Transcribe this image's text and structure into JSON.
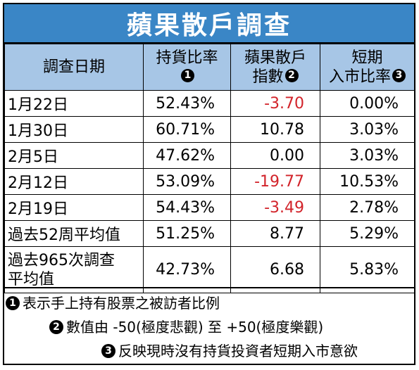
{
  "title": "蘋果散戶調查",
  "headers": {
    "date": "調查日期",
    "holding_line1": "持貨比率",
    "holding_mark": "1",
    "index_line1": "蘋果散戶",
    "index_line2": "指數",
    "index_mark": "2",
    "entry_line1": "短期",
    "entry_line2": "入市比率",
    "entry_mark": "3"
  },
  "rows": [
    {
      "date": "1月22日",
      "holding": "52.43%",
      "index": "-3.70",
      "entry": "0.00%",
      "index_negative": true
    },
    {
      "date": "1月30日",
      "holding": "60.71%",
      "index": "10.78",
      "entry": "3.03%",
      "index_negative": false
    },
    {
      "date": "2月5日",
      "holding": "47.62%",
      "index": "0.00",
      "entry": "3.03%",
      "index_negative": false
    },
    {
      "date": "2月12日",
      "holding": "53.09%",
      "index": "-19.77",
      "entry": "10.53%",
      "index_negative": true
    },
    {
      "date": "2月19日",
      "holding": "54.43%",
      "index": "-3.49",
      "entry": "2.78%",
      "index_negative": true
    },
    {
      "date": "過去52周平均值",
      "holding": "51.25%",
      "index": "8.77",
      "entry": "5.29%",
      "index_negative": false
    }
  ],
  "last_row": {
    "date_line1": "過去965次調查",
    "date_line2": "平均值",
    "holding": "42.73%",
    "index": "6.68",
    "entry": "5.83%"
  },
  "notes": [
    {
      "mark": "1",
      "text": "表示手上持有股票之被訪者比例"
    },
    {
      "mark": "2",
      "text": "數值由 -50(極度悲觀) 至 +50(極度樂觀)"
    },
    {
      "mark": "3",
      "text": "反映現時沒有持貨投資者短期入市意欲"
    }
  ],
  "colors": {
    "title_bg": "#3a86c6",
    "header_bg": "#a7c6e6",
    "negative": "#d2232a"
  }
}
